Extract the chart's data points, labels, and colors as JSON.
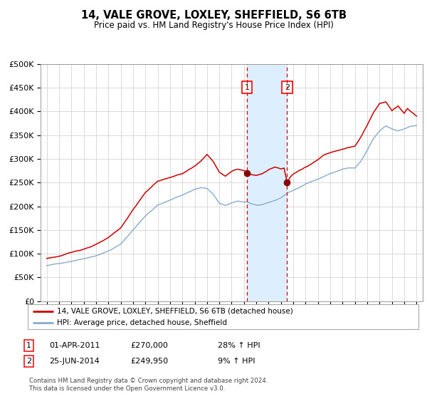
{
  "title1": "14, VALE GROVE, LOXLEY, SHEFFIELD, S6 6TB",
  "title2": "Price paid vs. HM Land Registry's House Price Index (HPI)",
  "legend1": "14, VALE GROVE, LOXLEY, SHEFFIELD, S6 6TB (detached house)",
  "legend2": "HPI: Average price, detached house, Sheffield",
  "sale1_date": "01-APR-2011",
  "sale1_price": 270000,
  "sale1_hpi_pct": "28% ↑ HPI",
  "sale2_date": "25-JUN-2014",
  "sale2_price": 249950,
  "sale2_hpi_pct": "9% ↑ HPI",
  "footer_line1": "Contains HM Land Registry data © Crown copyright and database right 2024.",
  "footer_line2": "This data is licensed under the Open Government Licence v3.0.",
  "sale1_year": 2011.25,
  "sale2_year": 2014.5,
  "property_color": "#cc0000",
  "hpi_color": "#88aacc",
  "marker_color": "#880000",
  "vline_color": "#cc0000",
  "shade_color": "#ddeeff",
  "ylim_max": 500000,
  "ylim_min": 0,
  "xlim_min": 1994.5,
  "xlim_max": 2025.5
}
